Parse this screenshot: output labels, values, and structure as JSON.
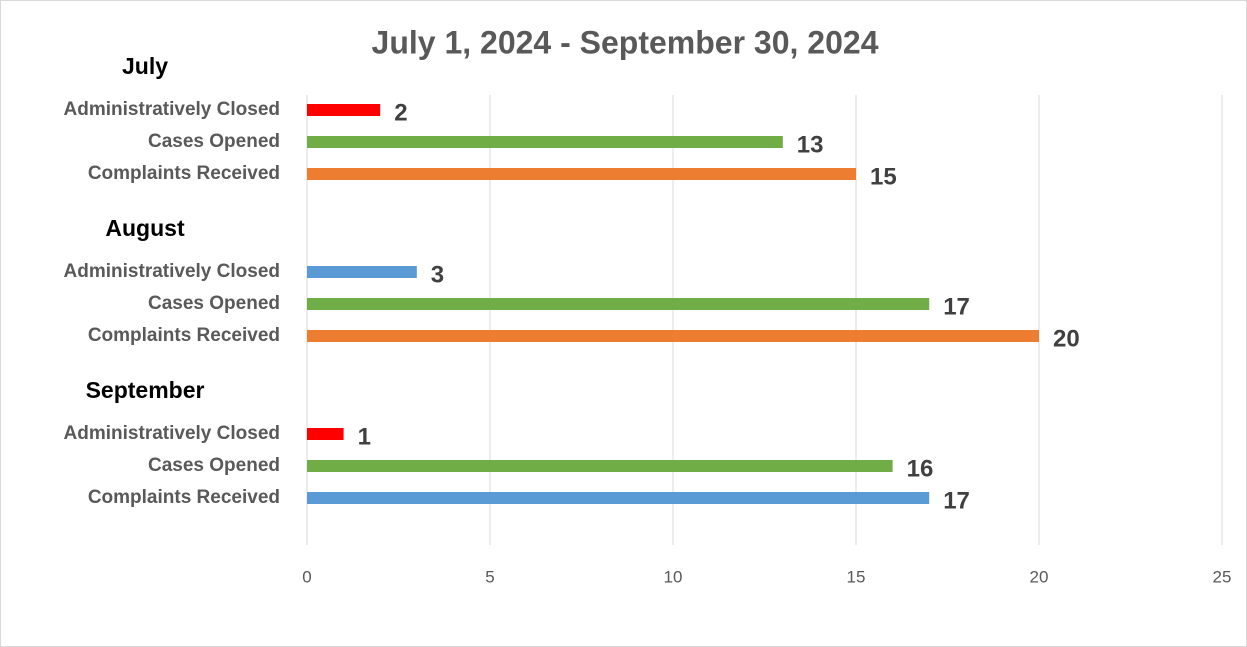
{
  "chart_data": {
    "type": "bar",
    "orientation": "horizontal",
    "title": "July 1, 2024 - September 30, 2024",
    "groups": [
      {
        "name": "July",
        "categories": [
          "Administratively Closed",
          "Cases Opened",
          "Complaints Received"
        ],
        "values": [
          2,
          13,
          15
        ],
        "colors": [
          "#ff0000",
          "#70ad47",
          "#ed7d31"
        ]
      },
      {
        "name": "August",
        "categories": [
          "Administratively Closed",
          "Cases Opened",
          "Complaints Received"
        ],
        "values": [
          3,
          17,
          20
        ],
        "colors": [
          "#5b9bd5",
          "#70ad47",
          "#ed7d31"
        ]
      },
      {
        "name": "September",
        "categories": [
          "Administratively Closed",
          "Cases Opened",
          "Complaints Received"
        ],
        "values": [
          1,
          16,
          17
        ],
        "colors": [
          "#ff0000",
          "#70ad47",
          "#5b9bd5"
        ]
      }
    ],
    "xlim": [
      0,
      25
    ],
    "xticks": [
      0,
      5,
      10,
      15,
      20,
      25
    ],
    "grid": true
  }
}
